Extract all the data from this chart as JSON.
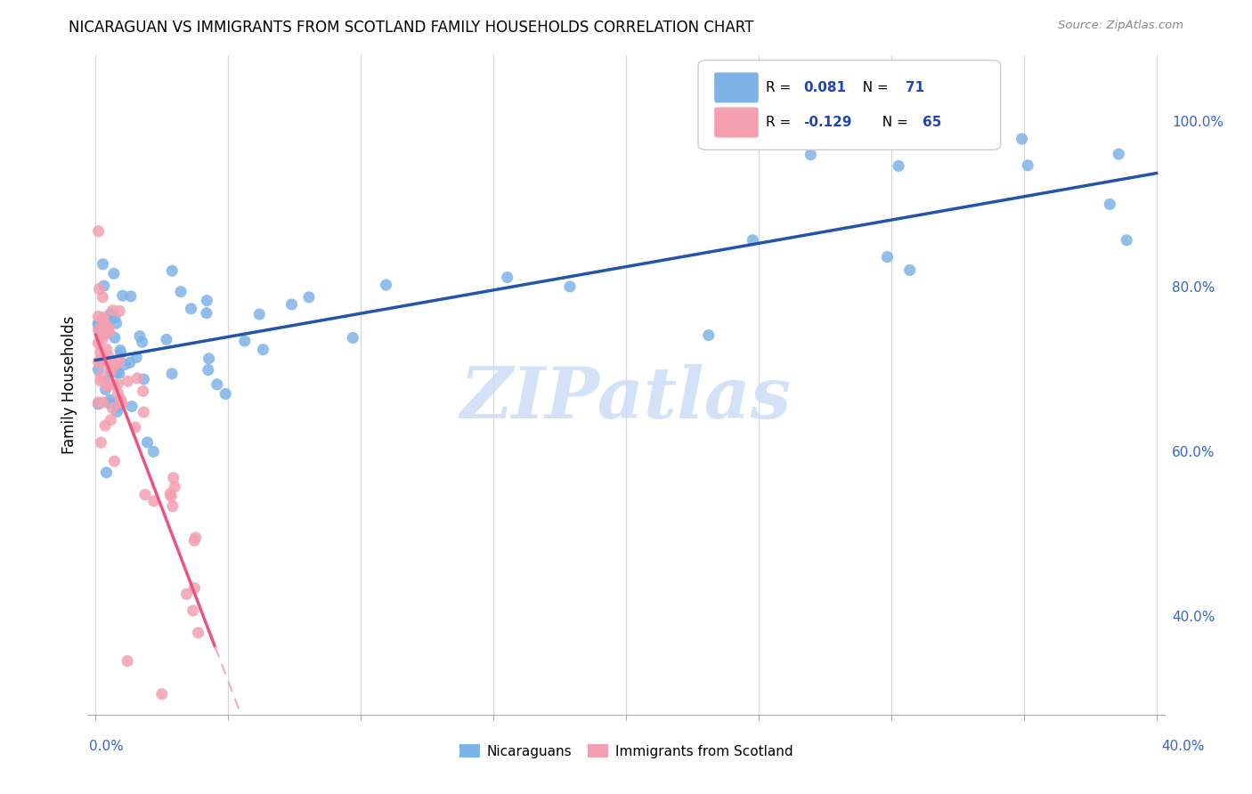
{
  "title": "NICARAGUAN VS IMMIGRANTS FROM SCOTLAND FAMILY HOUSEHOLDS CORRELATION CHART",
  "source": "Source: ZipAtlas.com",
  "ylabel": "Family Households",
  "xlim": [
    0.0,
    0.4
  ],
  "ylim": [
    0.28,
    1.08
  ],
  "blue_color": "#7EB3E8",
  "pink_color": "#F4A0B0",
  "blue_line_color": "#2255AA",
  "pink_line_color": "#E85580",
  "pink_dash_color": "#F0AACC",
  "watermark": "ZIPatlas",
  "legend_R_blue": "0.081",
  "legend_N_blue": "71",
  "legend_R_pink": "-0.129",
  "legend_N_pink": "65",
  "blue_R": 0.081,
  "pink_R": -0.129
}
